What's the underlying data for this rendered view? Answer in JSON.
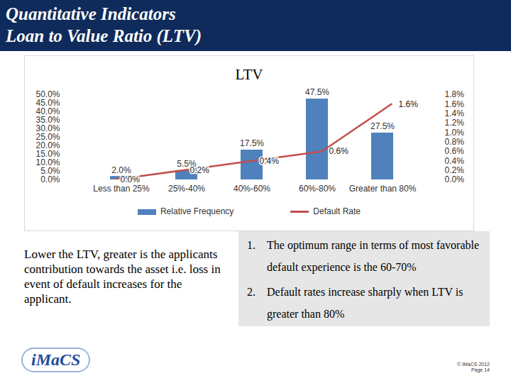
{
  "header": {
    "title": [
      "Quantitative Indicators",
      "Loan to Value Ratio (LTV)"
    ]
  },
  "chart_data": {
    "type": "bar",
    "title": "LTV",
    "categories": [
      "Less than 25%",
      "25%-40%",
      "40%-60%",
      "60%-80%",
      "Greater than 80%"
    ],
    "series": [
      {
        "name": "Relative Frequency",
        "type": "bar",
        "color": "#4f81bd",
        "values": [
          2.0,
          5.5,
          17.5,
          47.5,
          27.5
        ],
        "value_labels": [
          "2.0%",
          "5.5%",
          "17.5%",
          "47.5%",
          "27.5%"
        ]
      },
      {
        "name": "Default Rate",
        "type": "line",
        "axis": "y2",
        "color": "#c0504d",
        "values": [
          0.0,
          0.2,
          0.4,
          0.6,
          1.6
        ],
        "value_labels": [
          "0.0%",
          "0.2%",
          "0.4%",
          "0.6%",
          "1.6%"
        ]
      }
    ],
    "ylim": [
      0,
      50
    ],
    "yticks": [
      {
        "value": 0,
        "label": "0.0%"
      },
      {
        "value": 5,
        "label": "5.0%"
      },
      {
        "value": 10,
        "label": "10.0%"
      },
      {
        "value": 15,
        "label": "15.0%"
      },
      {
        "value": 20,
        "label": "20.0%"
      },
      {
        "value": 25,
        "label": "25.0%"
      },
      {
        "value": 30,
        "label": "30.0%"
      },
      {
        "value": 35,
        "label": "35.0%"
      },
      {
        "value": 40,
        "label": "40.0%"
      },
      {
        "value": 45,
        "label": "45.0%"
      },
      {
        "value": 50,
        "label": "50.0%"
      }
    ],
    "y2lim": [
      0,
      1.8
    ],
    "y2ticks": [
      {
        "value": 0,
        "label": "0.0%"
      },
      {
        "value": 0.2,
        "label": "0.2%"
      },
      {
        "value": 0.4,
        "label": "0.4%"
      },
      {
        "value": 0.6,
        "label": "0.6%"
      },
      {
        "value": 0.8,
        "label": "0.8%"
      },
      {
        "value": 1.0,
        "label": "1.0%"
      },
      {
        "value": 1.2,
        "label": "1.2%"
      },
      {
        "value": 1.4,
        "label": "1.4%"
      },
      {
        "value": 1.6,
        "label": "1.6%"
      },
      {
        "value": 1.8,
        "label": "1.8%"
      }
    ],
    "data_labels": true,
    "grid": false,
    "legend": "bottom"
  },
  "notes": {
    "left": "Lower the LTV, greater is the applicants contribution towards the asset i.e. loss in event of default increases for the applicant.",
    "points": [
      {
        "marker": "1.",
        "text": "The optimum range in terms of most favorable default experience is the 60-70%"
      },
      {
        "marker": "2.",
        "text": "Default rates increase sharply when LTV is greater than 80%"
      }
    ]
  },
  "footer": {
    "logo": "iMaCS",
    "lines": [
      "© IMaCS 2012",
      "Page 14"
    ]
  }
}
